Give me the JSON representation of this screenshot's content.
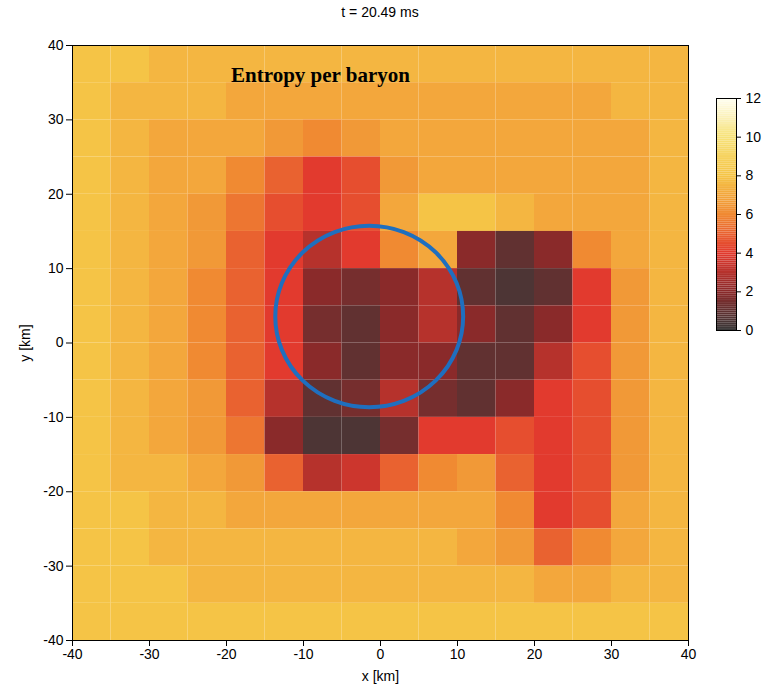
{
  "chart_data": {
    "type": "heatmap",
    "title": "t = 20.49 ms",
    "annotations": [
      "Entropy per baryon"
    ],
    "xlabel": "x [km]",
    "ylabel": "y [km]",
    "xlim": [
      -40,
      40
    ],
    "ylim": [
      -40,
      40
    ],
    "xticks": [
      -40,
      -30,
      -20,
      -10,
      0,
      10,
      20,
      30,
      40
    ],
    "yticks": [
      -40,
      -30,
      -20,
      -10,
      0,
      10,
      20,
      30,
      40
    ],
    "heatmap": {
      "x_bins": [
        -40,
        -35,
        -30,
        -25,
        -20,
        -15,
        -10,
        -5,
        0,
        5,
        10,
        15,
        20,
        25,
        30,
        35,
        40
      ],
      "y_bins": [
        40,
        35,
        30,
        25,
        20,
        15,
        10,
        5,
        0,
        -5,
        -10,
        -15,
        -20,
        -25,
        -30,
        -35,
        -40
      ],
      "values": [
        [
          8,
          8,
          7.5,
          7.5,
          7.5,
          7.5,
          7.5,
          7.5,
          7.5,
          7.5,
          7.5,
          7.5,
          7.5,
          7.5,
          7.5,
          7.5
        ],
        [
          8,
          7.5,
          7.5,
          7.5,
          7,
          7,
          7,
          7,
          7,
          7,
          7,
          7,
          7,
          7,
          7.5,
          7.5
        ],
        [
          8,
          7.5,
          7,
          7,
          7,
          6.5,
          6,
          6.5,
          7,
          7,
          7,
          7,
          7,
          7,
          7,
          7.5
        ],
        [
          8,
          7.5,
          7,
          7,
          6,
          5,
          4,
          4.5,
          6.5,
          7,
          7,
          7,
          7,
          7,
          7,
          7.5
        ],
        [
          8,
          7.5,
          7,
          6.5,
          5.5,
          4.5,
          4,
          4.5,
          7,
          8,
          8,
          7.5,
          7,
          7,
          7,
          7.5
        ],
        [
          8,
          7.5,
          7,
          6.5,
          5,
          4,
          3,
          4,
          6,
          7,
          2,
          1,
          2,
          6,
          7,
          7.5
        ],
        [
          8,
          7.5,
          7,
          6,
          5,
          4,
          2,
          1.5,
          2,
          3,
          1,
          0.5,
          1,
          4,
          6.5,
          7.5
        ],
        [
          8,
          7.5,
          7,
          6,
          5,
          4,
          1.5,
          1,
          2,
          3,
          2,
          1,
          2,
          4,
          6.5,
          7.5
        ],
        [
          8,
          7.5,
          7,
          6,
          5,
          4,
          2,
          1,
          2,
          2,
          1,
          1,
          3,
          4.5,
          6.5,
          7.5
        ],
        [
          8,
          7.5,
          7,
          6.5,
          5,
          3,
          1,
          1.5,
          3,
          1.5,
          1,
          2,
          4,
          4.5,
          6.5,
          7.5
        ],
        [
          8,
          7.5,
          7,
          6.5,
          5.5,
          2,
          0.5,
          0.5,
          1.5,
          4,
          4,
          4.5,
          4,
          4.5,
          6.5,
          7.5
        ],
        [
          8,
          7.5,
          7.5,
          7,
          6.5,
          5,
          3,
          3.5,
          5,
          6,
          6.5,
          5,
          4,
          4.5,
          6.5,
          7.5
        ],
        [
          8,
          8,
          7.5,
          7.5,
          7,
          7,
          7,
          7,
          7,
          7,
          7,
          6,
          4,
          4.5,
          7,
          7.5
        ],
        [
          8,
          8,
          7.5,
          7.5,
          7.5,
          7.5,
          7.5,
          7.5,
          7.5,
          7.5,
          7,
          6.5,
          5,
          6,
          7,
          7.5
        ],
        [
          8,
          8,
          8,
          7.5,
          7.5,
          7.5,
          7.5,
          7.5,
          7.5,
          7.5,
          7.5,
          7.5,
          7,
          7,
          7.5,
          7.5
        ],
        [
          8,
          8,
          8,
          8,
          8,
          8,
          8,
          8,
          8,
          8,
          8,
          8,
          8,
          8,
          8,
          8
        ]
      ]
    },
    "colorbar": {
      "range": [
        0,
        12
      ],
      "ticks": [
        0,
        2,
        4,
        6,
        8,
        10,
        12
      ]
    },
    "circle": {
      "cx": -1.4,
      "cy": 3.5,
      "r": 12.2,
      "color": "#1f6fbf"
    }
  }
}
